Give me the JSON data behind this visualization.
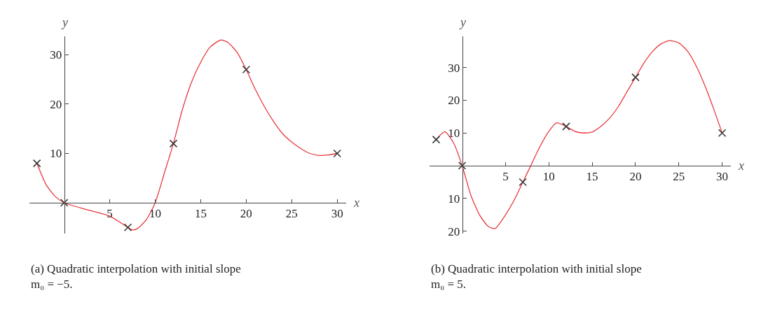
{
  "chart_data": [
    {
      "type": "line",
      "title": "(a) Quadratic interpolation with initial slope m₀ = −5.",
      "xlabel": "x",
      "ylabel": "y",
      "xlim": [
        -3.8,
        31
      ],
      "ylim": [
        -6.3,
        33.8
      ],
      "xticks": [
        5,
        10,
        15,
        20,
        25,
        30
      ],
      "yticks": [
        10,
        20,
        30
      ],
      "series": [
        {
          "color": "#e8383d",
          "marker": "none",
          "x": [
            -3,
            -2,
            -1,
            0,
            2.5,
            5,
            7,
            7.5,
            8,
            9,
            10,
            11,
            12,
            13,
            14,
            15,
            16,
            17.2,
            18,
            19,
            20,
            21,
            22,
            23,
            24,
            25,
            26,
            27,
            28,
            29,
            30
          ],
          "values": [
            8,
            3.7,
            1.3,
            0,
            -1.4,
            -2.7,
            -5,
            -5.5,
            -5.3,
            -3.5,
            0,
            6,
            12,
            19,
            24.5,
            28.5,
            31.5,
            33,
            32.5,
            30.5,
            27,
            23,
            19.5,
            16.5,
            14,
            12.3,
            11,
            10,
            9.6,
            9.7,
            10
          ]
        },
        {
          "type": "scatter",
          "color": "#333333",
          "marker": "cross",
          "x": [
            -3,
            0,
            7,
            12,
            20,
            30
          ],
          "values": [
            8,
            0,
            -5,
            12,
            27,
            10
          ]
        }
      ]
    },
    {
      "type": "line",
      "title": "(b) Quadratic interpolation with initial slope m₀ = 5.",
      "xlabel": "x",
      "ylabel": "y",
      "xlim": [
        -3.8,
        31
      ],
      "ylim": [
        -20.8,
        39.6
      ],
      "xticks": [
        5,
        10,
        15,
        20,
        25,
        30
      ],
      "yticks": [
        {
          "value": -20,
          "label": "20"
        },
        {
          "value": -10,
          "label": "10"
        },
        10,
        20,
        30
      ],
      "series": [
        {
          "color": "#e8383d",
          "marker": "none",
          "x": [
            -3,
            -2,
            -1,
            0,
            1,
            2,
            3,
            3.8,
            5,
            6,
            7,
            8,
            9,
            10,
            10.9,
            12,
            13,
            14,
            15,
            16,
            17,
            18,
            19,
            20,
            21,
            22,
            23,
            23.9,
            25,
            26,
            27,
            28,
            29,
            30
          ],
          "values": [
            8,
            10.4,
            7,
            0,
            -9,
            -15,
            -18.5,
            -19.2,
            -15,
            -10.5,
            -5,
            0.5,
            6,
            10.5,
            13.1,
            12,
            10.5,
            10,
            10.3,
            12,
            14.5,
            18,
            22.5,
            27,
            31.5,
            35,
            37.3,
            38.2,
            37.5,
            35,
            30.5,
            24.5,
            17.5,
            10
          ]
        },
        {
          "type": "scatter",
          "color": "#333333",
          "marker": "cross",
          "x": [
            -3,
            0,
            7,
            12,
            20,
            30
          ],
          "values": [
            8,
            0,
            -5,
            12,
            27,
            10
          ]
        }
      ]
    }
  ]
}
